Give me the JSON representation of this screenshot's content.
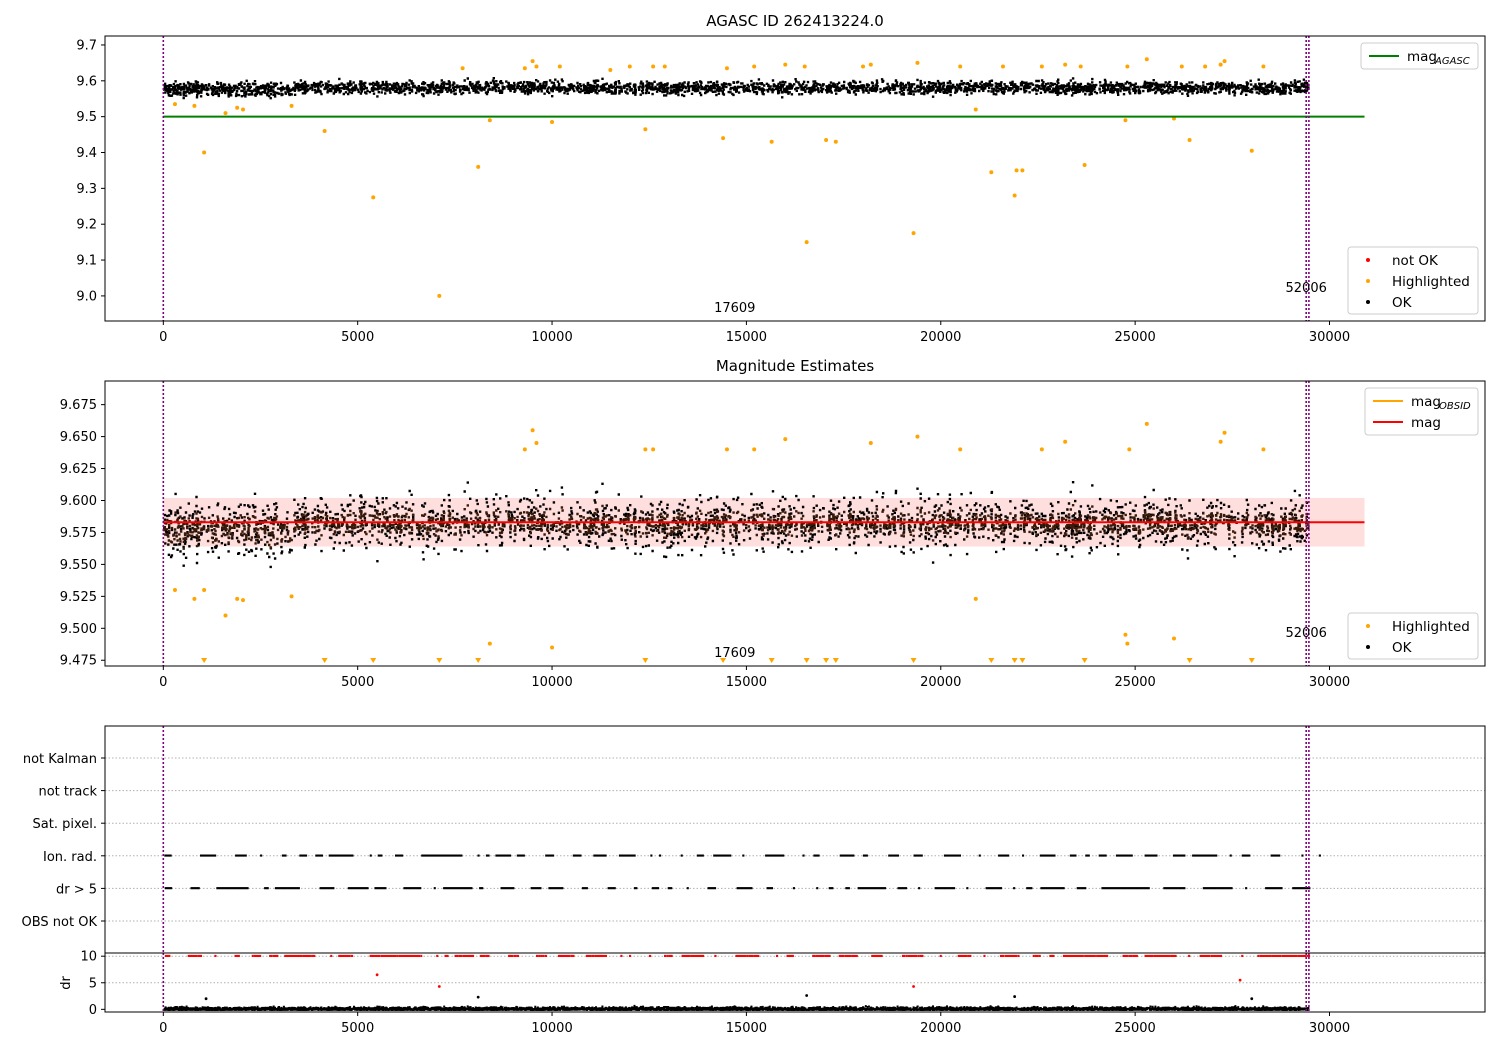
{
  "colors": {
    "ok": "#000000",
    "highlighted": "#ffa500",
    "not_ok": "#ff0000",
    "agasc_line": "#008000",
    "mag_line": "#ff0000",
    "mag_obsid_line": "#ffa500",
    "band_fill": "#ffc8c8",
    "obs_lines": "#800080",
    "grid": "#b0b0b0"
  },
  "chart_data": [
    {
      "type": "scatter",
      "title": "AGASC ID 262413224.0",
      "xlim": [
        -1500,
        34000
      ],
      "ylim": [
        8.93,
        9.725
      ],
      "xticks": [
        0,
        5000,
        10000,
        15000,
        20000,
        25000,
        30000
      ],
      "yticks": [
        9.0,
        9.1,
        9.2,
        9.3,
        9.4,
        9.5,
        9.6,
        9.7
      ],
      "ytick_labels": [
        "9.0",
        "9.1",
        "9.2",
        "9.3",
        "9.4",
        "9.5",
        "9.6",
        "9.7"
      ],
      "obs_boundaries": [
        0,
        29400,
        29470
      ],
      "obs_labels": [
        {
          "text": "17609",
          "x": 14700
        },
        {
          "text": "52006",
          "x": 29400
        }
      ],
      "hline": {
        "name": "mag_AGASC",
        "y": 9.5,
        "x_range": [
          0,
          30900
        ]
      },
      "ok_band": {
        "x_range": [
          0,
          29450
        ],
        "center": 9.583,
        "spread": 0.018
      },
      "legends": [
        {
          "position": "upper right",
          "entries": [
            {
              "label": "mag",
              "sub": "AGASC",
              "marker": "line",
              "color": "#008000"
            }
          ]
        },
        {
          "position": "lower right",
          "entries": [
            {
              "label": "not OK",
              "marker": "dot",
              "color": "#ff0000"
            },
            {
              "label": "Highlighted",
              "marker": "dot",
              "color": "#ffa500"
            },
            {
              "label": "OK",
              "marker": "dot",
              "color": "#000000"
            }
          ]
        }
      ],
      "highlighted_points": [
        [
          300,
          9.535
        ],
        [
          800,
          9.53
        ],
        [
          1050,
          9.4
        ],
        [
          1600,
          9.51
        ],
        [
          1900,
          9.525
        ],
        [
          2050,
          9.52
        ],
        [
          3300,
          9.53
        ],
        [
          4150,
          9.46
        ],
        [
          5400,
          9.275
        ],
        [
          7100,
          9.0
        ],
        [
          7700,
          9.635
        ],
        [
          8100,
          9.36
        ],
        [
          8400,
          9.49
        ],
        [
          9300,
          9.635
        ],
        [
          9500,
          9.655
        ],
        [
          9600,
          9.64
        ],
        [
          10000,
          9.485
        ],
        [
          10200,
          9.64
        ],
        [
          11500,
          9.63
        ],
        [
          12000,
          9.64
        ],
        [
          12400,
          9.465
        ],
        [
          12600,
          9.64
        ],
        [
          12900,
          9.64
        ],
        [
          14400,
          9.44
        ],
        [
          14500,
          9.635
        ],
        [
          15200,
          9.64
        ],
        [
          15650,
          9.43
        ],
        [
          16000,
          9.645
        ],
        [
          16500,
          9.64
        ],
        [
          16550,
          9.15
        ],
        [
          17050,
          9.435
        ],
        [
          17300,
          9.43
        ],
        [
          18000,
          9.64
        ],
        [
          18200,
          9.645
        ],
        [
          19300,
          9.175
        ],
        [
          19400,
          9.65
        ],
        [
          20500,
          9.64
        ],
        [
          20900,
          9.52
        ],
        [
          21300,
          9.345
        ],
        [
          21600,
          9.64
        ],
        [
          21900,
          9.28
        ],
        [
          21950,
          9.35
        ],
        [
          22100,
          9.35
        ],
        [
          22600,
          9.64
        ],
        [
          23200,
          9.645
        ],
        [
          23700,
          9.365
        ],
        [
          23600,
          9.64
        ],
        [
          24750,
          9.49
        ],
        [
          24800,
          9.64
        ],
        [
          25300,
          9.66
        ],
        [
          26000,
          9.495
        ],
        [
          26200,
          9.64
        ],
        [
          26400,
          9.435
        ],
        [
          26800,
          9.64
        ],
        [
          27200,
          9.645
        ],
        [
          27300,
          9.655
        ],
        [
          28000,
          9.405
        ],
        [
          28300,
          9.64
        ]
      ]
    },
    {
      "type": "scatter",
      "title": "Magnitude Estimates",
      "xlim": [
        -1500,
        34000
      ],
      "ylim": [
        9.4705,
        9.6935
      ],
      "xticks": [
        0,
        5000,
        10000,
        15000,
        20000,
        25000,
        30000
      ],
      "yticks": [
        9.475,
        9.5,
        9.525,
        9.55,
        9.575,
        9.6,
        9.625,
        9.65,
        9.675
      ],
      "ytick_labels": [
        "9.475",
        "9.500",
        "9.525",
        "9.550",
        "9.575",
        "9.600",
        "9.625",
        "9.650",
        "9.675"
      ],
      "obs_boundaries": [
        0,
        29400,
        29470
      ],
      "obs_labels": [
        {
          "text": "17609",
          "x": 14700
        },
        {
          "text": "52006",
          "x": 29400
        }
      ],
      "mag": 9.583,
      "mag_band": [
        9.564,
        9.602
      ],
      "mag_obsid": {
        "y": 9.583,
        "x_range": [
          0,
          29450
        ]
      },
      "mag_x_range": [
        0,
        30900
      ],
      "ok_band": {
        "x_range": [
          0,
          29450
        ],
        "center": 9.583,
        "spread": 0.018
      },
      "legends": [
        {
          "position": "upper right",
          "entries": [
            {
              "label": "mag",
              "sub": "OBSID",
              "marker": "line",
              "color": "#ffa500"
            },
            {
              "label": "mag",
              "marker": "line",
              "color": "#ff0000"
            }
          ]
        },
        {
          "position": "lower right",
          "entries": [
            {
              "label": "Highlighted",
              "marker": "dot",
              "color": "#ffa500"
            },
            {
              "label": "OK",
              "marker": "dot",
              "color": "#000000"
            }
          ]
        }
      ],
      "highlighted_points": [
        [
          300,
          9.53
        ],
        [
          800,
          9.523
        ],
        [
          1050,
          9.53
        ],
        [
          1600,
          9.51
        ],
        [
          1900,
          9.523
        ],
        [
          2050,
          9.522
        ],
        [
          3300,
          9.525
        ],
        [
          8400,
          9.488
        ],
        [
          9300,
          9.64
        ],
        [
          9500,
          9.655
        ],
        [
          9600,
          9.645
        ],
        [
          10000,
          9.485
        ],
        [
          12400,
          9.64
        ],
        [
          12600,
          9.64
        ],
        [
          14500,
          9.64
        ],
        [
          15200,
          9.64
        ],
        [
          16000,
          9.648
        ],
        [
          18200,
          9.645
        ],
        [
          19400,
          9.65
        ],
        [
          20500,
          9.64
        ],
        [
          20900,
          9.523
        ],
        [
          22600,
          9.64
        ],
        [
          23200,
          9.646
        ],
        [
          24750,
          9.495
        ],
        [
          24800,
          9.488
        ],
        [
          24850,
          9.64
        ],
        [
          25300,
          9.66
        ],
        [
          26000,
          9.492
        ],
        [
          27200,
          9.646
        ],
        [
          27300,
          9.653
        ],
        [
          28300,
          9.64
        ]
      ],
      "below_range_markers_x": [
        1050,
        4150,
        5400,
        7100,
        8100,
        12400,
        14400,
        15650,
        16550,
        17050,
        17300,
        19300,
        21300,
        21900,
        22100,
        23700,
        26400,
        28000
      ]
    },
    {
      "type": "scatter",
      "title": "",
      "xlim": [
        -1500,
        34000
      ],
      "flag_rows": [
        "not Kalman",
        "not track",
        "Sat. pixel.",
        "Ion. rad.",
        "dr > 5",
        "OBS not OK"
      ],
      "flagged_rows": [
        "Ion. rad.",
        "dr > 5"
      ],
      "dr_ylabel": "dr",
      "dr_ylim": [
        -0.5,
        10.6
      ],
      "dr_yticks": [
        0,
        5,
        10
      ],
      "dr_ytick_labels": [
        "0",
        "5",
        "10"
      ],
      "xticks": [
        0,
        5000,
        10000,
        15000,
        20000,
        25000,
        30000
      ],
      "obs_boundaries": [
        0,
        29400,
        29470
      ],
      "dr_outliers_red": [
        [
          5500,
          6.5
        ],
        [
          7100,
          4.3
        ],
        [
          19300,
          4.3
        ],
        [
          27700,
          5.5
        ]
      ],
      "dr_outliers_black": [
        [
          1100,
          2.0
        ],
        [
          8100,
          2.3
        ],
        [
          16550,
          2.6
        ],
        [
          21900,
          2.4
        ],
        [
          28000,
          2.0
        ]
      ]
    }
  ],
  "ticks": {
    "x_labels": [
      "0",
      "5000",
      "10000",
      "15000",
      "20000",
      "25000",
      "30000"
    ]
  }
}
